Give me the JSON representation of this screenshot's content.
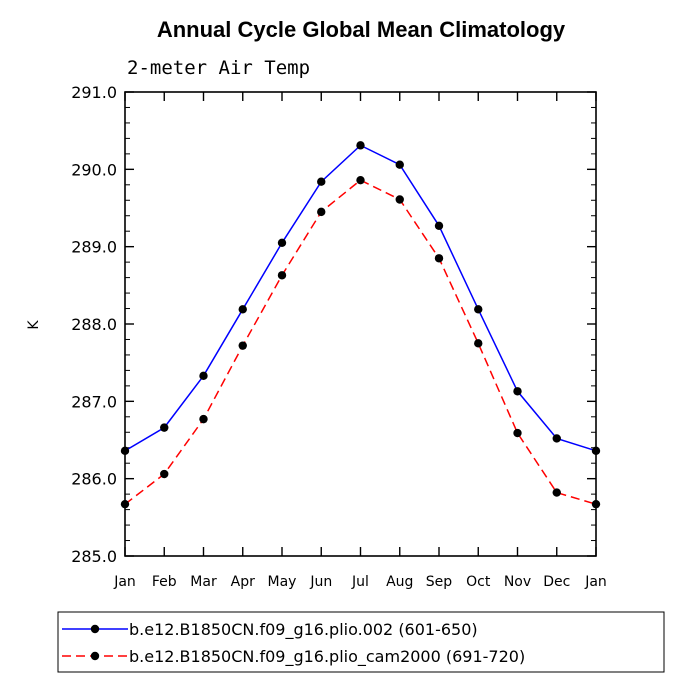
{
  "chart_data": {
    "type": "line",
    "title": "Annual Cycle Global Mean Climatology",
    "subtitle": "2-meter Air Temp",
    "xlabel": "",
    "ylabel": "K",
    "categories": [
      "Jan",
      "Feb",
      "Mar",
      "Apr",
      "May",
      "Jun",
      "Jul",
      "Aug",
      "Sep",
      "Oct",
      "Nov",
      "Dec",
      "Jan"
    ],
    "ylim": [
      285.0,
      291.0
    ],
    "yticks": [
      "285.0",
      "286.0",
      "287.0",
      "288.0",
      "289.0",
      "290.0",
      "291.0"
    ],
    "grid": false,
    "legend_position": "bottom",
    "series": [
      {
        "name": "b.e12.B1850CN.f09_g16.plio.002 (601-650)",
        "color": "#0000ff",
        "dash": "solid",
        "values": [
          286.36,
          286.66,
          287.33,
          288.19,
          289.05,
          289.84,
          290.31,
          290.06,
          289.27,
          288.19,
          287.13,
          286.52,
          286.36
        ]
      },
      {
        "name": "b.e12.B1850CN.f09_g16.plio_cam2000 (691-720)",
        "color": "#ff0000",
        "dash": "dashed",
        "values": [
          285.67,
          286.06,
          286.77,
          287.72,
          288.63,
          289.45,
          289.86,
          289.61,
          288.85,
          287.75,
          286.59,
          285.82,
          285.67
        ]
      }
    ]
  }
}
